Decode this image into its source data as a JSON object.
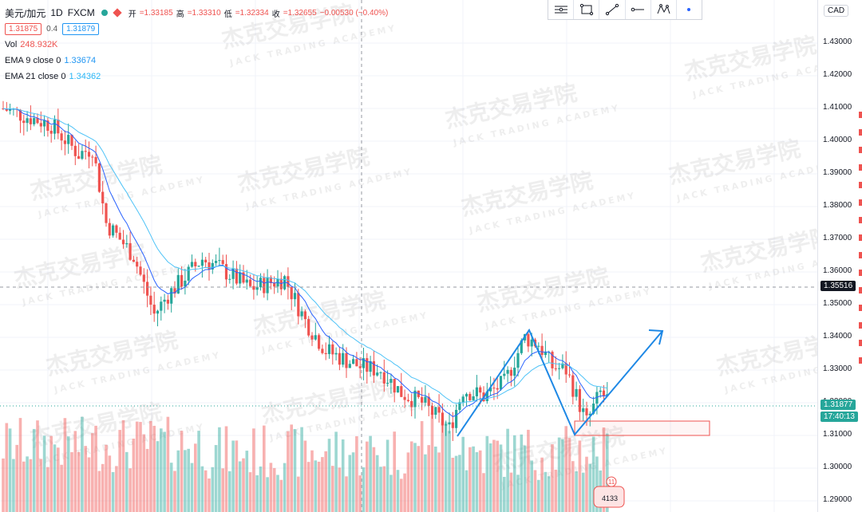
{
  "legend": {
    "symbol": "美元/加元",
    "interval": "1D",
    "broker": "FXCM",
    "open_label": "开",
    "open": "=1.33185",
    "high_label": "高",
    "high": "=1.33310",
    "low_label": "低",
    "low": "=1.32334",
    "close_label": "收",
    "close": "=1.32655",
    "change": "−0.00530 (−0.40%)",
    "bid": "1.31875",
    "spread": "0.4",
    "ask": "1.31879",
    "vol_label": "Vol",
    "vol": "248.932K",
    "ema9_label": "EMA 9 close 0",
    "ema9": "1.33674",
    "ema21_label": "EMA 21 close 0",
    "ema21": "1.34362"
  },
  "currency": "CAD",
  "price_axis": {
    "ticks": [
      "1.43000",
      "1.42000",
      "1.41000",
      "1.40000",
      "1.39000",
      "1.38000",
      "1.37000",
      "1.36000",
      "1.35000",
      "1.34000",
      "1.33000",
      "1.32000",
      "1.31000",
      "1.30000",
      "1.29000"
    ],
    "crosshair_label": "1.35516",
    "last_price_label": "1.31877",
    "countdown_label": "17:40:13"
  },
  "watermark": {
    "cn": "杰克交易学院",
    "en": "JACK TRADING ACADEMY"
  },
  "toolbar": {
    "icons": [
      "horizontal-lines-icon",
      "rectangle-icon",
      "trend-line-icon",
      "horizontal-ray-icon",
      "xabcd-pattern-icon",
      "dot-icon"
    ]
  },
  "colors": {
    "up": "#26a69a",
    "down": "#ef5350",
    "ema9": "#2962ff",
    "ema21": "#4fc3f7",
    "drawing": "#1e88e5"
  },
  "badge": {
    "number": "11",
    "code": "4133"
  }
}
